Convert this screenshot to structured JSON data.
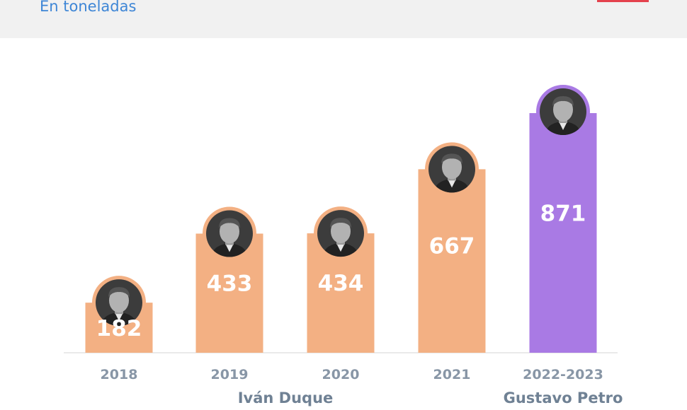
{
  "header": {
    "subtitle": "En toneladas"
  },
  "chart_data": {
    "type": "bar",
    "title": "",
    "subtitle": "En toneladas",
    "xlabel": "",
    "ylabel": "",
    "ylim": [
      0,
      900
    ],
    "categories": [
      "2018",
      "2019",
      "2020",
      "2021",
      "2022-2023"
    ],
    "values": [
      182,
      433,
      434,
      667,
      871
    ],
    "value_labels": [
      "182",
      "433",
      "434",
      "667",
      "871"
    ],
    "bar_colors": [
      "#f3b083",
      "#f3b083",
      "#f3b083",
      "#f3b083",
      "#a97ae4"
    ],
    "presidents": [
      {
        "name": "Iván Duque",
        "period": [
          "2018",
          "2019",
          "2020",
          "2021"
        ]
      },
      {
        "name": "Gustavo Petro",
        "period": [
          "2022-2023"
        ]
      }
    ],
    "grid": false,
    "legend": "none"
  }
}
